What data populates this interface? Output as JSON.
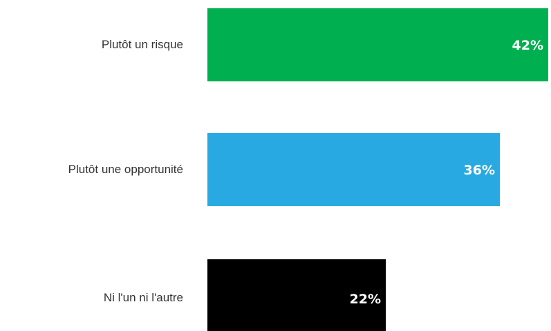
{
  "chart_data": {
    "type": "bar",
    "orientation": "horizontal",
    "categories": [
      "Plutôt un risque",
      "Plutôt une opportunité",
      "Ni l'un ni l'autre"
    ],
    "values": [
      42,
      36,
      22
    ],
    "value_labels": [
      "42%",
      "36%",
      "22%"
    ],
    "colors": [
      "#00b050",
      "#29a9e1",
      "#000000"
    ],
    "unit": "%",
    "title": "",
    "xlabel": "",
    "ylabel": "",
    "xlim": [
      0,
      42
    ],
    "grid": false,
    "legend": "none"
  }
}
